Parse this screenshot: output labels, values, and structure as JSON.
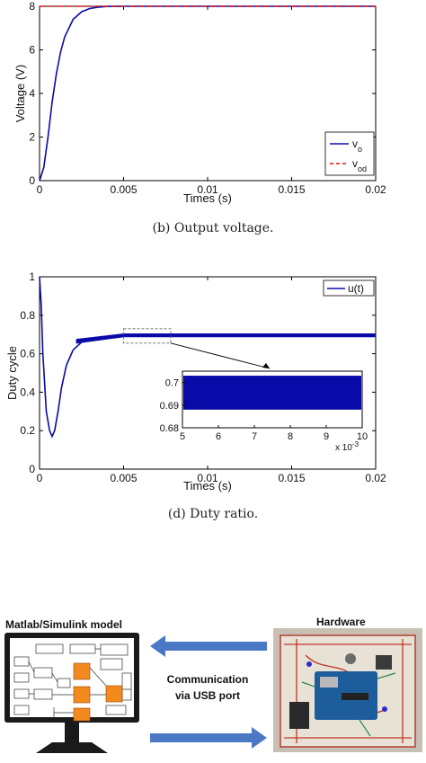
{
  "chart_data": [
    {
      "type": "line",
      "panel": "b",
      "caption": "(b) Output voltage.",
      "xlabel": "Times (s)",
      "ylabel": "Voltage (V)",
      "xlim": [
        0,
        0.02
      ],
      "ylim": [
        0,
        8
      ],
      "xticks": [
        "0",
        "0.005",
        "0.01",
        "0.015",
        "0.02"
      ],
      "yticks": [
        "0",
        "2",
        "4",
        "6",
        "8"
      ],
      "legend_position": "bottom-right",
      "series": [
        {
          "name": "v",
          "sub": "o",
          "color": "#0a0aa8",
          "style": "solid",
          "x": [
            0,
            0.00025,
            0.0005,
            0.00075,
            0.001,
            0.00125,
            0.0015,
            0.002,
            0.0025,
            0.003,
            0.0035,
            0.004,
            0.005,
            0.01,
            0.02
          ],
          "y": [
            0,
            0.6,
            2.0,
            3.6,
            4.9,
            5.9,
            6.6,
            7.4,
            7.75,
            7.9,
            7.96,
            7.99,
            8.0,
            8.0,
            8.0
          ]
        },
        {
          "name": "v",
          "sub": "od",
          "color": "#e01010",
          "style": "dashed",
          "x": [
            0,
            0.02
          ],
          "y": [
            8,
            8
          ]
        }
      ]
    },
    {
      "type": "line",
      "panel": "d",
      "caption": "(d) Duty ratio.",
      "xlabel": "Times (s)",
      "ylabel": "Duty cycle",
      "xlim": [
        0,
        0.02
      ],
      "ylim": [
        0,
        1
      ],
      "xticks": [
        "0",
        "0.005",
        "0.01",
        "0.015",
        "0.02"
      ],
      "yticks": [
        "0",
        "0.2",
        "0.4",
        "0.6",
        "0.8",
        "1"
      ],
      "legend_position": "top-right",
      "series": [
        {
          "name": "u(t)",
          "color": "#0a0aa8",
          "style": "solid",
          "x": [
            0,
            0.0001,
            0.0002,
            0.0004,
            0.0006,
            0.00075,
            0.0009,
            0.0011,
            0.0013,
            0.0016,
            0.002,
            0.0025,
            0.003,
            0.004,
            0.005,
            0.01,
            0.02
          ],
          "y": [
            1.0,
            0.85,
            0.6,
            0.3,
            0.2,
            0.17,
            0.2,
            0.3,
            0.42,
            0.54,
            0.62,
            0.66,
            0.68,
            0.69,
            0.695,
            0.695,
            0.695
          ]
        }
      ],
      "inset": {
        "xlim": [
          5,
          10
        ],
        "ylim": [
          0.68,
          0.705
        ],
        "xticks": [
          "5",
          "6",
          "7",
          "8",
          "9",
          "10"
        ],
        "yticks": [
          "0.68",
          "0.69",
          "0.7"
        ],
        "x_multiplier": "x 10",
        "x_exponent": "-3",
        "band_low": 0.688,
        "band_high": 0.703
      }
    }
  ],
  "hardware_figure": {
    "left_title": "Matlab/Simulink model",
    "right_title": "Hardware",
    "comm_line1": "Communication",
    "comm_line2": "via USB port",
    "arrow_color": "#4a78c4",
    "block_color": "#f28a1e"
  }
}
